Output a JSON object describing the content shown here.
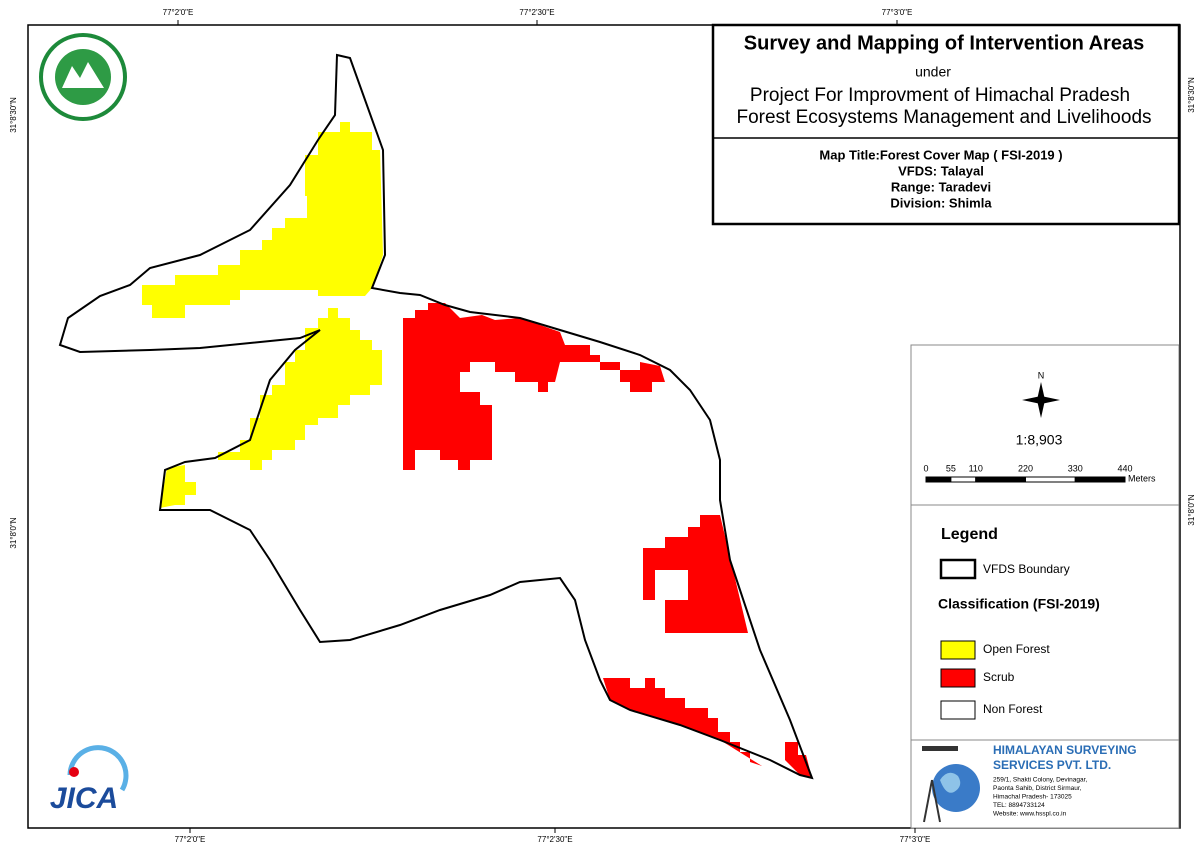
{
  "header": {
    "title": "Survey and Mapping of Intervention Areas",
    "under": "under",
    "project_line1": "Project For Improvment of Himachal Pradesh",
    "project_line2": "Forest Ecosystems Management and Livelihoods"
  },
  "map_info": {
    "title": "Map Title:Forest Cover Map ( FSI-2019 )",
    "vfds": "VFDS: Talayal",
    "range": "Range: Taradevi",
    "division": "Division: Shimla"
  },
  "coordinates": {
    "top": [
      "77°2'0\"E",
      "77°2'30\"E",
      "77°3'0\"E"
    ],
    "bottom": [
      "77°2'0\"E",
      "77°2'30\"E",
      "77°3'0\"E"
    ],
    "left": [
      "31°8'30\"N",
      "31°8'0\"N"
    ],
    "right": [
      "31°8'30\"N",
      "31°8'0\"N"
    ]
  },
  "north": "N",
  "scale": {
    "ratio": "1:8,903",
    "bar_labels": [
      0,
      55,
      110,
      220,
      330,
      440
    ],
    "unit": "Meters"
  },
  "legend": {
    "title": "Legend",
    "boundary": "VFDS Boundary",
    "classification_title": "Classification (FSI-2019)",
    "classes": [
      {
        "label": "Open Forest",
        "color": "#ffff00"
      },
      {
        "label": "Scrub",
        "color": "#ff0000"
      },
      {
        "label": "Non Forest",
        "color": "#ffffff"
      }
    ]
  },
  "company": {
    "name_line1": "HIMALAYAN SURVEYING",
    "name_line2": "SERVICES PVT. LTD.",
    "address": [
      "259/1, Shakti Colony, Devinagar,",
      "Paonta Sahib, District Sirmaur,",
      "Himachal Pradesh- 173025",
      "TEL: 8894733124",
      "Website: www.hsspl.co.in"
    ]
  },
  "logos": {
    "jica": "JICA"
  }
}
